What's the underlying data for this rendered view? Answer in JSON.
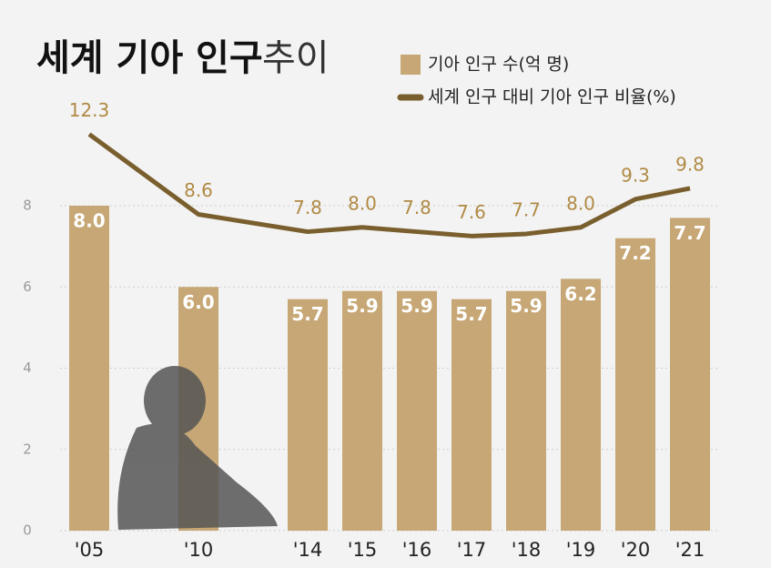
{
  "chart_data": {
    "type": "bar-line",
    "title": "세계 기아 인구",
    "subtitle": "추이",
    "categories": [
      "'05",
      "'10",
      "'14",
      "'15",
      "'16",
      "'17",
      "'18",
      "'19",
      "'20",
      "'21"
    ],
    "series": [
      {
        "name": "기아 인구 수(억 명)",
        "type": "bar",
        "color": "#c6a775",
        "values": [
          8.0,
          6.0,
          5.7,
          5.9,
          5.9,
          5.7,
          5.9,
          6.2,
          7.2,
          7.7
        ],
        "value_labels": [
          "8.0",
          "6.0",
          "5.7",
          "5.9",
          "5.9",
          "5.7",
          "5.9",
          "6.2",
          "7.2",
          "7.7"
        ]
      },
      {
        "name": "세계 인구 대비 기아 인구 비율(%)",
        "type": "line",
        "axis": "y2",
        "color": "#7a5f2e",
        "values": [
          12.3,
          8.6,
          7.8,
          8.0,
          7.8,
          7.6,
          7.7,
          8.0,
          9.3,
          9.8
        ],
        "value_labels": [
          "12.3",
          "8.6",
          "7.8",
          "8.0",
          "7.8",
          "7.6",
          "7.7",
          "8.0",
          "9.3",
          "9.8"
        ]
      }
    ],
    "ylim": [
      0,
      8
    ],
    "yticks": [
      0,
      2,
      4,
      6,
      8
    ],
    "y2lim": [
      -6,
      9
    ],
    "grid": true
  }
}
